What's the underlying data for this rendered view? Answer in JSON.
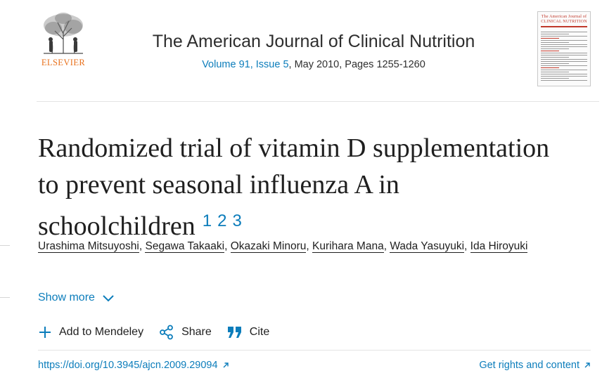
{
  "publisher": {
    "logo_wordmark": "ELSEVIER",
    "color": "#e9711c"
  },
  "journal": {
    "title": "The American Journal of Clinical Nutrition",
    "volume_issue": "Volume 91, Issue 5",
    "date_pages": ", May 2010, Pages 1255-1260",
    "cover_title": "The American Journal of CLINICAL NUTRITION"
  },
  "article": {
    "title": "Randomized trial of vitamin D supplementation to prevent seasonal influenza A in schoolchildren",
    "footnotes": [
      "1",
      "2",
      "3"
    ],
    "authors": [
      "Urashima Mitsuyoshi",
      "Segawa Takaaki",
      "Okazaki Minoru",
      "Kurihara Mana",
      "Wada Yasuyuki",
      "Ida Hiroyuki"
    ],
    "author_separator": ", "
  },
  "controls": {
    "show_more": "Show more",
    "add_to_mendeley": "Add to Mendeley",
    "share": "Share",
    "cite": "Cite"
  },
  "links": {
    "doi": "https://doi.org/10.3945/ajcn.2009.29094",
    "rights": "Get rights and content"
  },
  "icons": {
    "publisher_logo": "elsevier-tree-icon",
    "show_more": "chevron-down-icon",
    "mendeley": "plus-icon",
    "share": "share-icon",
    "cite": "quote-icon",
    "external": "external-link-icon"
  },
  "colors": {
    "link": "#0c7dbb",
    "text": "#1f1f1f"
  }
}
